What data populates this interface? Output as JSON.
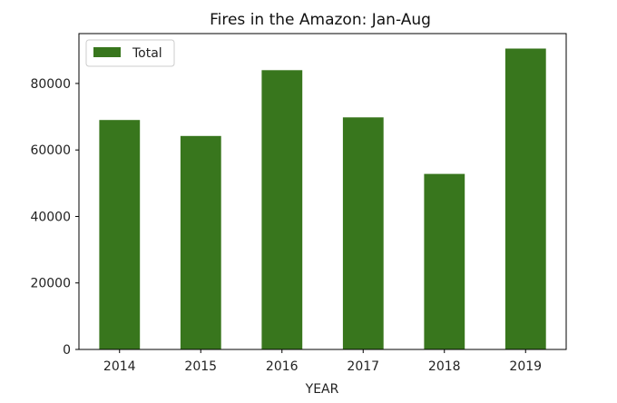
{
  "chart_data": {
    "type": "bar",
    "title": "Fires in the Amazon: Jan-Aug",
    "xlabel": "YEAR",
    "ylabel": "",
    "categories": [
      "2014",
      "2015",
      "2016",
      "2017",
      "2018",
      "2019"
    ],
    "series": [
      {
        "name": "Total",
        "values": [
          69000,
          64200,
          84000,
          69800,
          52800,
          90500
        ],
        "color": "#38761d"
      }
    ],
    "ylim": [
      0,
      95000
    ],
    "yticks": [
      0,
      20000,
      40000,
      60000,
      80000
    ],
    "ytick_labels": [
      "0",
      "20000",
      "40000",
      "60000",
      "80000"
    ],
    "grid": false,
    "legend_position": "top-left"
  }
}
